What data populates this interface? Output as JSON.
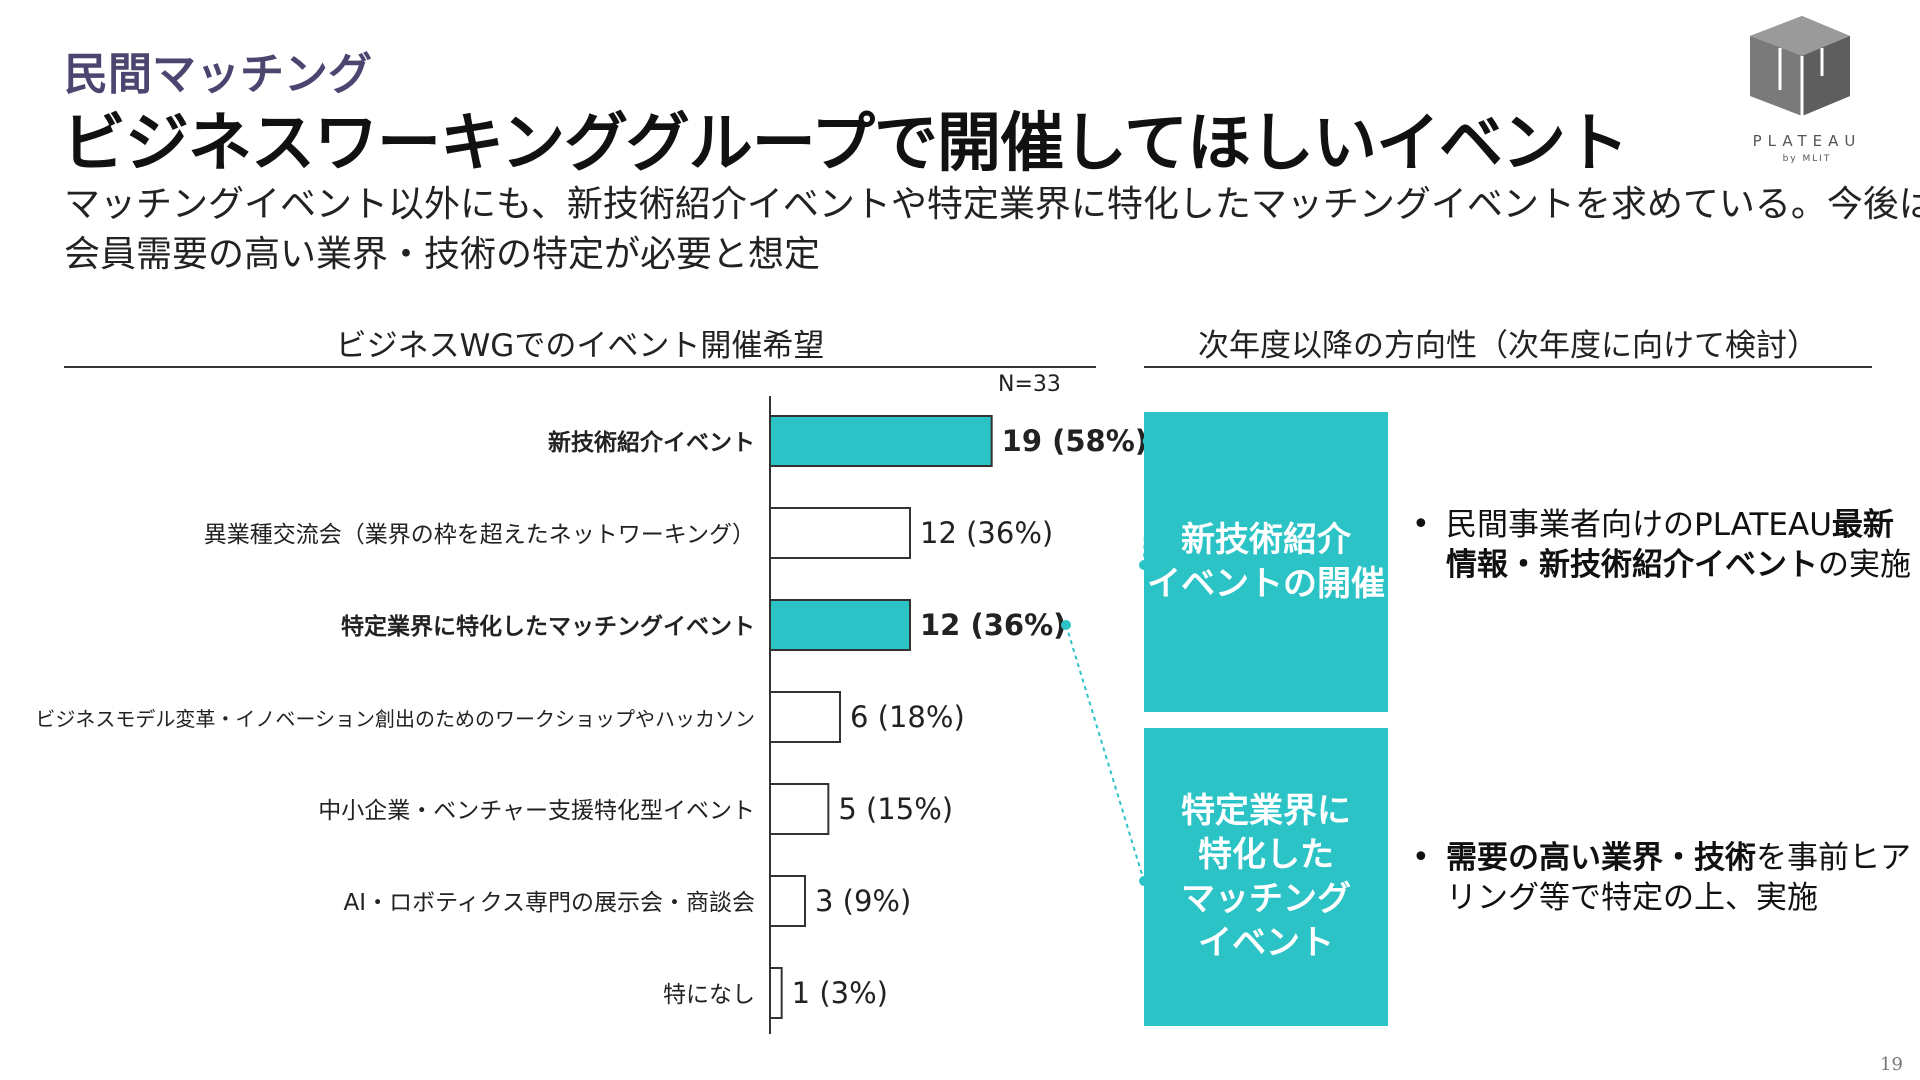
{
  "header": {
    "category": "民間マッチング",
    "title": "ビジネスワーキンググループで開催してほしいイベント",
    "subtitle_line1": "マッチングイベント以外にも、新技術紹介イベントや特定業界に特化したマッチングイベントを求めている。今後は",
    "subtitle_line2": "会員需要の高い業界・技術の特定が必要と想定"
  },
  "logo": {
    "word": "PLATEAU",
    "sub": "by MLIT"
  },
  "left_section": {
    "heading": "ビジネスWGでのイベント開催希望",
    "sample_size": "N=33"
  },
  "right_section": {
    "heading": "次年度以降の方向性（次年度に向けて検討）",
    "box1_line1": "新技術紹介",
    "box1_line2": "イベントの開催",
    "box2_line1": "特定業界に",
    "box2_line2": "特化した",
    "box2_line3": "マッチング",
    "box2_line4": "イベント",
    "bullet1_a": "民間事業者向けのPLATEAU",
    "bullet1_b": "最新情報・新技術紹介イベント",
    "bullet1_c": "の実施",
    "bullet2_a": "需要の高い業界・技術",
    "bullet2_b": "を事前ヒアリング等で特定の上、実施"
  },
  "page_number": "19",
  "colors": {
    "accent": "#2cc3c6",
    "category": "#4e4470",
    "bar_plain": "#ffffff",
    "bar_border": "#333333"
  },
  "chart_data": {
    "type": "bar",
    "orientation": "horizontal",
    "total": 33,
    "categories": [
      "新技術紹介イベント",
      "異業種交流会（業界の枠を超えたネットワーキング）",
      "特定業界に特化したマッチングイベント",
      "ビジネスモデル変革・イノベーション創出のためのワークショップやハッカソン",
      "中小企業・ベンチャー支援特化型イベント",
      "AI・ロボティクス専門の展示会・商談会",
      "特になし"
    ],
    "values": [
      19,
      12,
      12,
      6,
      5,
      3,
      1
    ],
    "data_labels": [
      "19 (58%)",
      "12 (36%)",
      "12 (36%)",
      "6 (18%)",
      "5 (15%)",
      "3 (9%)",
      "1 (3%)"
    ],
    "highlighted": [
      true,
      false,
      true,
      false,
      false,
      false,
      false
    ],
    "xlim": [
      0,
      33
    ],
    "grid": false
  }
}
